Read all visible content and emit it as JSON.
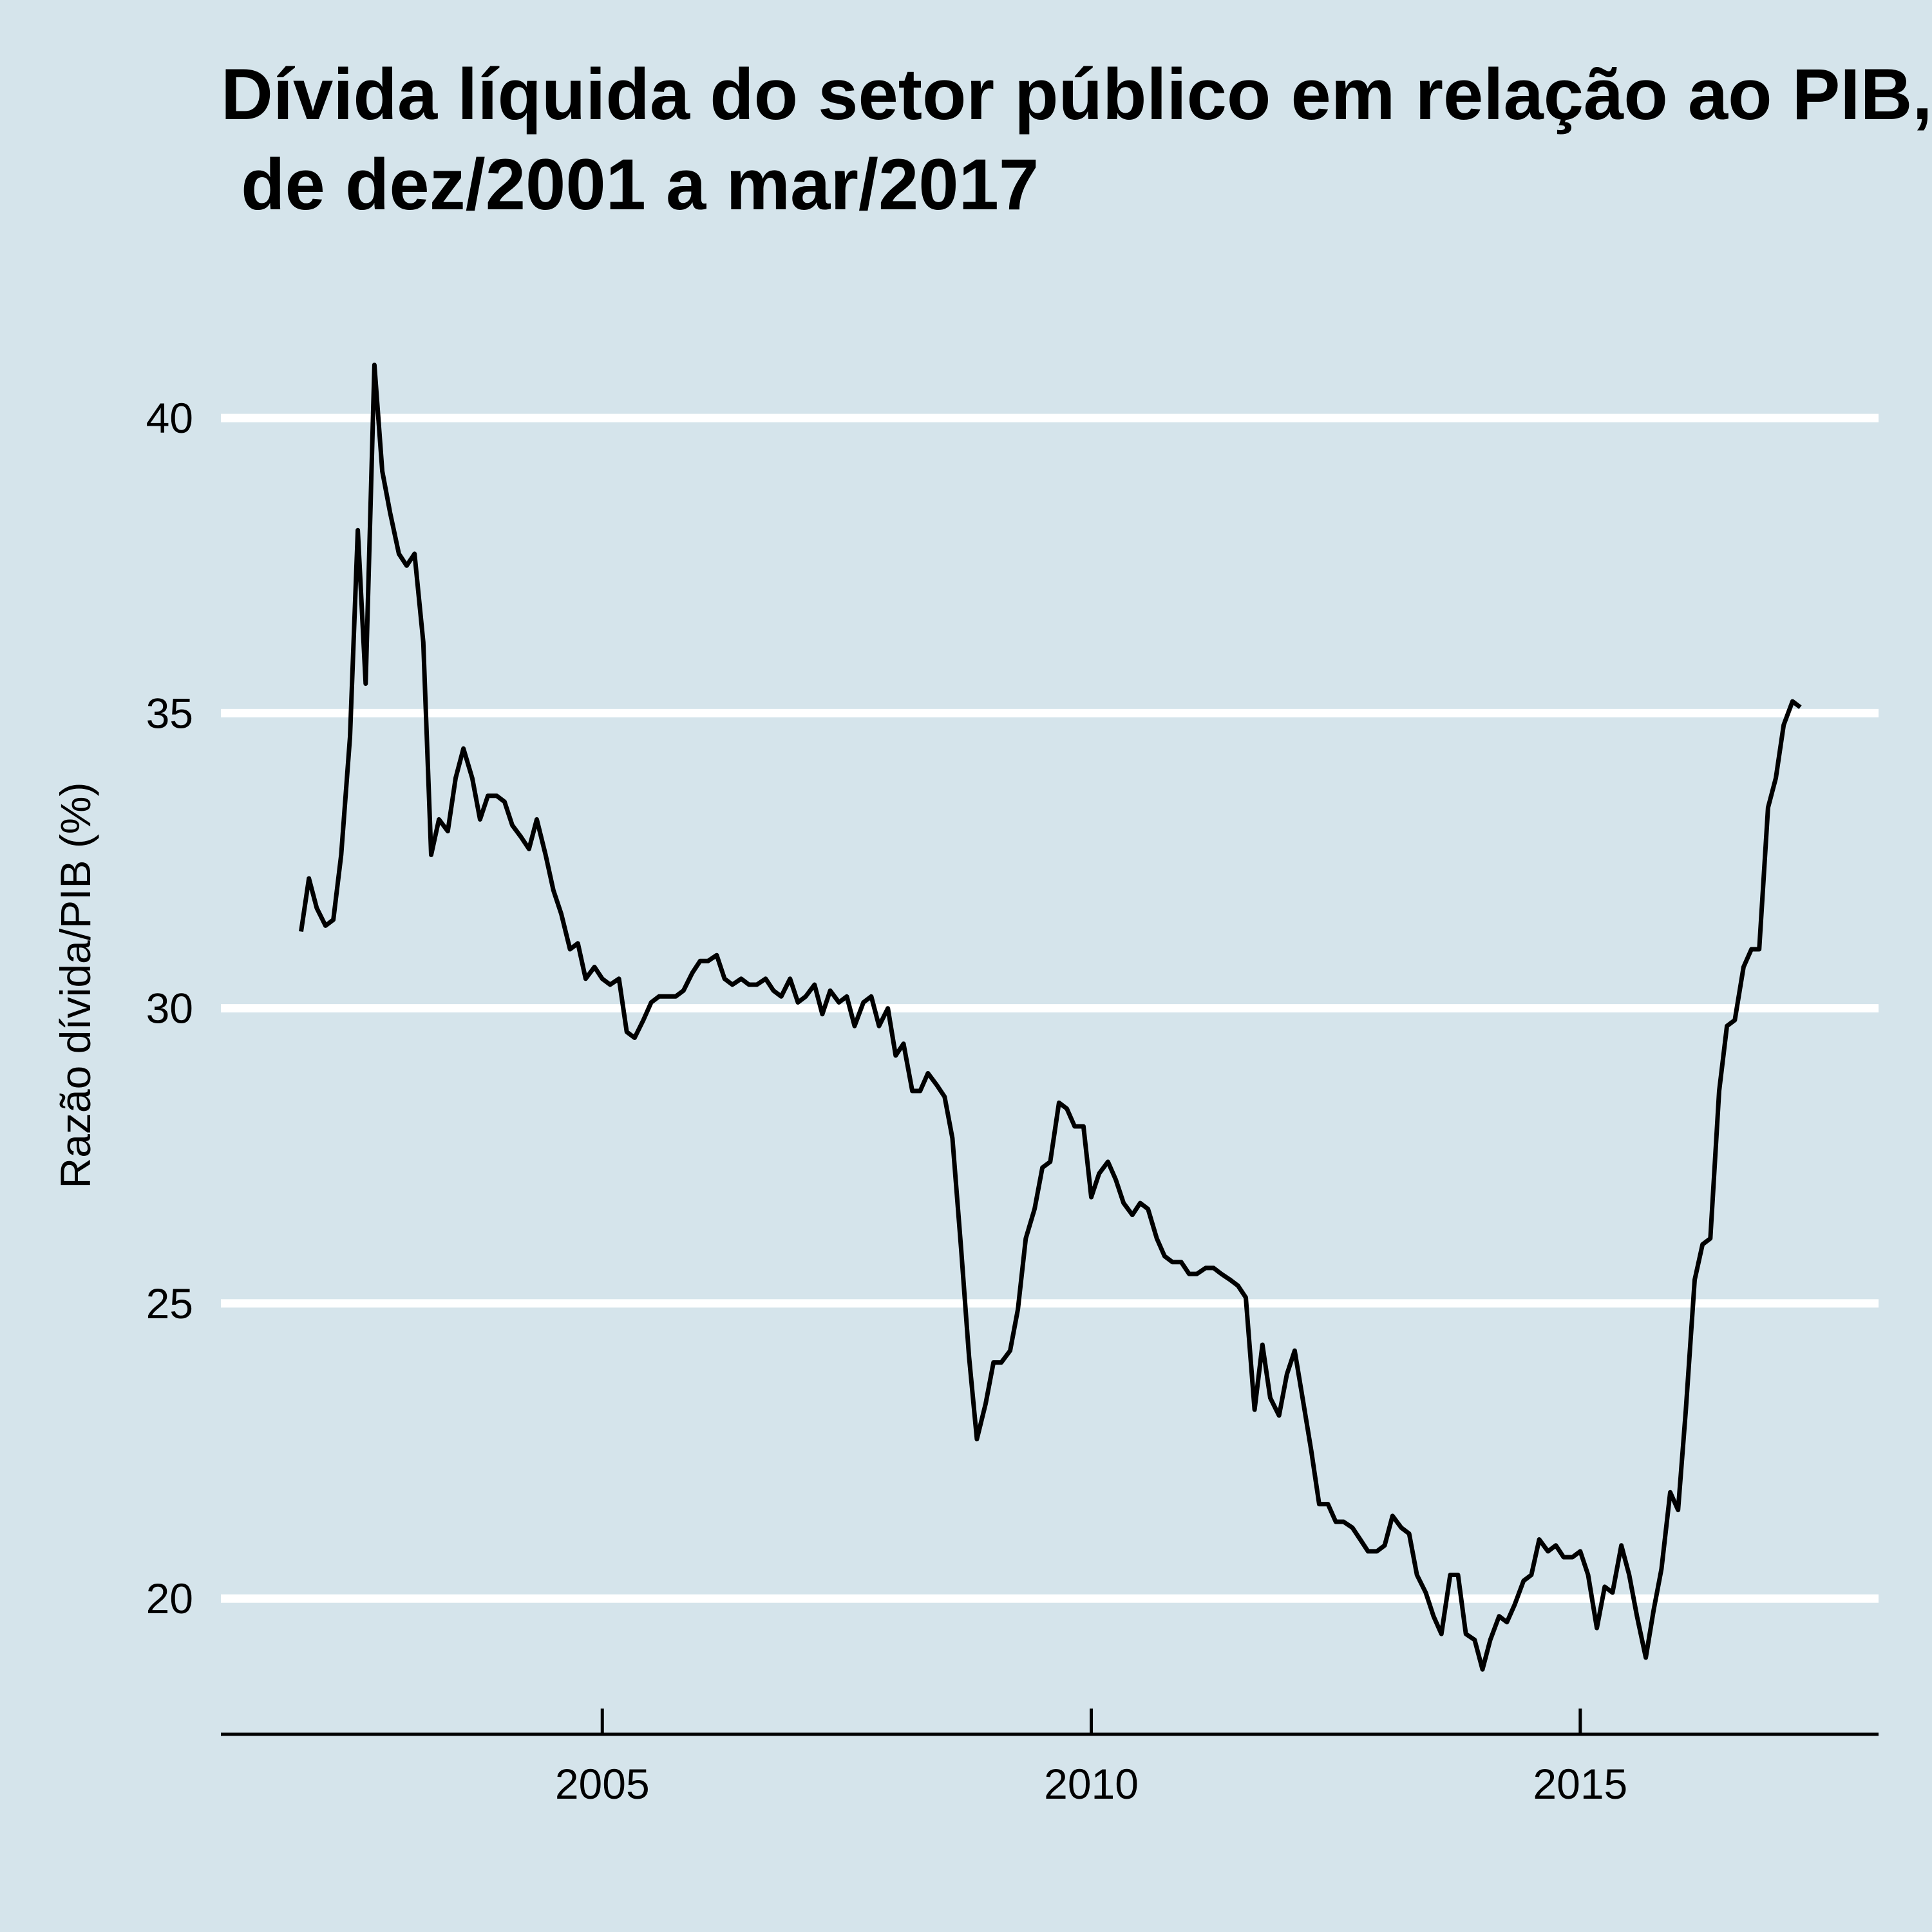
{
  "chart_data": {
    "type": "line",
    "title_lines": [
      "Dívida líquida do setor público em relação ao PIB,",
      " de dez/2001 a mar/2017"
    ],
    "xlabel": "",
    "ylabel": "Razão dívida/PIB (%)",
    "xlim": [
      2001.1,
      2018.05
    ],
    "ylim": [
      17.7,
      42.5
    ],
    "x_ticks": [
      2005,
      2010,
      2015
    ],
    "y_ticks": [
      20,
      25,
      30,
      35,
      40
    ],
    "grid": {
      "horizontal": true,
      "vertical": false
    },
    "colors": {
      "background": "#d5e4eb",
      "grid": "#ffffff",
      "line": "#000000",
      "axis": "#000000"
    },
    "series": [
      {
        "x": [
          2001.92,
          2002.0,
          2002.08,
          2002.17,
          2002.25,
          2002.33,
          2002.42,
          2002.5,
          2002.58,
          2002.67,
          2002.75,
          2002.83,
          2002.92,
          2003.0,
          2003.08,
          2003.17,
          2003.25,
          2003.33,
          2003.42,
          2003.5,
          2003.58,
          2003.67,
          2003.75,
          2003.83,
          2003.92,
          2004.0,
          2004.08,
          2004.17,
          2004.25,
          2004.33,
          2004.42,
          2004.5,
          2004.58,
          2004.67,
          2004.75,
          2004.83,
          2004.92,
          2005.0,
          2005.08,
          2005.17,
          2005.25,
          2005.33,
          2005.42,
          2005.5,
          2005.58,
          2005.67,
          2005.75,
          2005.83,
          2005.92,
          2006.0,
          2006.08,
          2006.17,
          2006.25,
          2006.33,
          2006.42,
          2006.5,
          2006.58,
          2006.67,
          2006.75,
          2006.83,
          2006.92,
          2007.0,
          2007.08,
          2007.17,
          2007.25,
          2007.33,
          2007.42,
          2007.5,
          2007.58,
          2007.67,
          2007.75,
          2007.83,
          2007.92,
          2008.0,
          2008.08,
          2008.17,
          2008.25,
          2008.33,
          2008.42,
          2008.5,
          2008.58,
          2008.67,
          2008.75,
          2008.83,
          2008.92,
          2009.0,
          2009.08,
          2009.17,
          2009.25,
          2009.33,
          2009.42,
          2009.5,
          2009.58,
          2009.67,
          2009.75,
          2009.83,
          2009.92,
          2010.0,
          2010.08,
          2010.17,
          2010.25,
          2010.33,
          2010.42,
          2010.5,
          2010.58,
          2010.67,
          2010.75,
          2010.83,
          2010.92,
          2011.0,
          2011.08,
          2011.17,
          2011.25,
          2011.33,
          2011.42,
          2011.5,
          2011.58,
          2011.67,
          2011.75,
          2011.83,
          2011.92,
          2012.0,
          2012.08,
          2012.17,
          2012.25,
          2012.33,
          2012.42,
          2012.5,
          2012.58,
          2012.67,
          2012.75,
          2012.83,
          2012.92,
          2013.0,
          2013.08,
          2013.17,
          2013.25,
          2013.33,
          2013.42,
          2013.5,
          2013.58,
          2013.67,
          2013.75,
          2013.83,
          2013.92,
          2014.0,
          2014.08,
          2014.17,
          2014.25,
          2014.33,
          2014.42,
          2014.5,
          2014.58,
          2014.67,
          2014.75,
          2014.83,
          2014.92,
          2015.0,
          2015.08,
          2015.17,
          2015.25,
          2015.33,
          2015.42,
          2015.5,
          2015.58,
          2015.67,
          2015.75,
          2015.83,
          2015.92,
          2016.0,
          2016.08,
          2016.17,
          2016.25,
          2016.33,
          2016.42,
          2016.5,
          2016.58,
          2016.67,
          2016.75,
          2016.83,
          2016.92,
          2017.0,
          2017.08,
          2017.17,
          2017.25
        ],
        "y": [
          31.3,
          32.2,
          31.7,
          31.4,
          31.5,
          32.6,
          34.6,
          38.1,
          35.5,
          40.9,
          39.1,
          38.4,
          37.7,
          37.5,
          37.7,
          36.2,
          32.6,
          33.2,
          33.0,
          33.9,
          34.4,
          33.9,
          33.2,
          33.6,
          33.6,
          33.5,
          33.1,
          32.9,
          32.7,
          33.2,
          32.6,
          32.0,
          31.6,
          31.0,
          31.1,
          30.5,
          30.7,
          30.5,
          30.4,
          30.5,
          29.6,
          29.5,
          29.8,
          30.1,
          30.2,
          30.2,
          30.2,
          30.3,
          30.6,
          30.8,
          30.8,
          30.9,
          30.5,
          30.4,
          30.5,
          30.4,
          30.4,
          30.5,
          30.3,
          30.2,
          30.5,
          30.1,
          30.2,
          30.4,
          29.9,
          30.3,
          30.1,
          30.2,
          29.7,
          30.1,
          30.2,
          29.7,
          30.0,
          29.2,
          29.4,
          28.6,
          28.6,
          28.9,
          28.7,
          28.5,
          27.8,
          25.9,
          24.1,
          22.7,
          23.3,
          24.0,
          24.0,
          24.2,
          24.9,
          26.1,
          26.6,
          27.3,
          27.4,
          28.4,
          28.3,
          28.0,
          28.0,
          26.8,
          27.2,
          27.4,
          27.1,
          26.7,
          26.5,
          26.7,
          26.6,
          26.1,
          25.8,
          25.7,
          25.7,
          25.5,
          25.5,
          25.6,
          25.6,
          25.5,
          25.4,
          25.3,
          25.1,
          23.2,
          24.3,
          23.4,
          23.1,
          23.8,
          24.2,
          23.3,
          22.5,
          21.6,
          21.6,
          21.3,
          21.3,
          21.2,
          21.0,
          20.8,
          20.8,
          20.9,
          21.4,
          21.2,
          21.1,
          20.4,
          20.1,
          19.7,
          19.4,
          20.4,
          20.4,
          19.4,
          19.3,
          18.8,
          19.3,
          19.7,
          19.6,
          19.9,
          20.3,
          20.4,
          21.0,
          20.8,
          20.9,
          20.7,
          20.7,
          20.8,
          20.4,
          19.5,
          20.2,
          20.1,
          20.9,
          20.4,
          19.7,
          19.0,
          19.8,
          20.5,
          21.8,
          21.5,
          23.2,
          25.4,
          26.0,
          26.1,
          28.6,
          29.7,
          29.8,
          30.7,
          31.0,
          31.0,
          33.4,
          33.9,
          34.8,
          35.2,
          35.1
        ]
      }
    ]
  }
}
